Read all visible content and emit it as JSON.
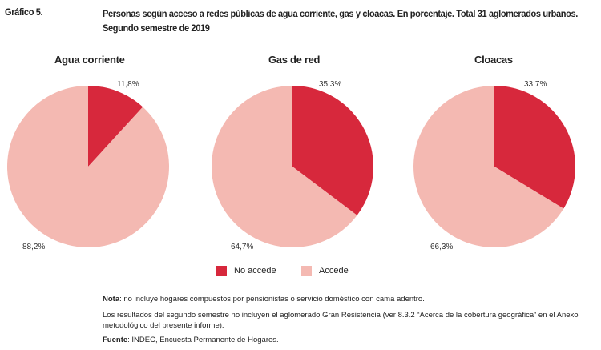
{
  "header": {
    "figure_label": "Gráfico 5.",
    "title": "Personas según acceso a redes públicas de agua corriente, gas y cloacas. En porcentaje. Total 31 aglomerados urbanos. Segundo semestre de 2019"
  },
  "chart_data": [
    {
      "type": "pie",
      "title": "Agua corriente",
      "slices": [
        {
          "name": "No accede",
          "value": 11.8,
          "label": "11,8%"
        },
        {
          "name": "Accede",
          "value": 88.2,
          "label": "88,2%"
        }
      ]
    },
    {
      "type": "pie",
      "title": "Gas de red",
      "slices": [
        {
          "name": "No accede",
          "value": 35.3,
          "label": "35,3%"
        },
        {
          "name": "Accede",
          "value": 64.7,
          "label": "64,7%"
        }
      ]
    },
    {
      "type": "pie",
      "title": "Cloacas",
      "slices": [
        {
          "name": "No accede",
          "value": 33.7,
          "label": "33,7%"
        },
        {
          "name": "Accede",
          "value": 66.3,
          "label": "66,3%"
        }
      ]
    }
  ],
  "legend": {
    "placement": "bottom",
    "items": [
      {
        "label": "No accede",
        "color": "#d7283c"
      },
      {
        "label": "Accede",
        "color": "#f4b9b2"
      }
    ]
  },
  "notes": {
    "nota_label": "Nota",
    "nota_text": ": no incluye hogares compuestos por pensionistas o servicio doméstico con cama adentro.",
    "line2": "Los resultados del segundo semestre no incluyen el aglomerado Gran Resistencia (ver 8.3.2 “Acerca de la cobertura geográfica” en el Anexo metodológico del presente informe).",
    "fuente_label": "Fuente",
    "fuente_text": ": INDEC, Encuesta Permanente de Hogares."
  }
}
